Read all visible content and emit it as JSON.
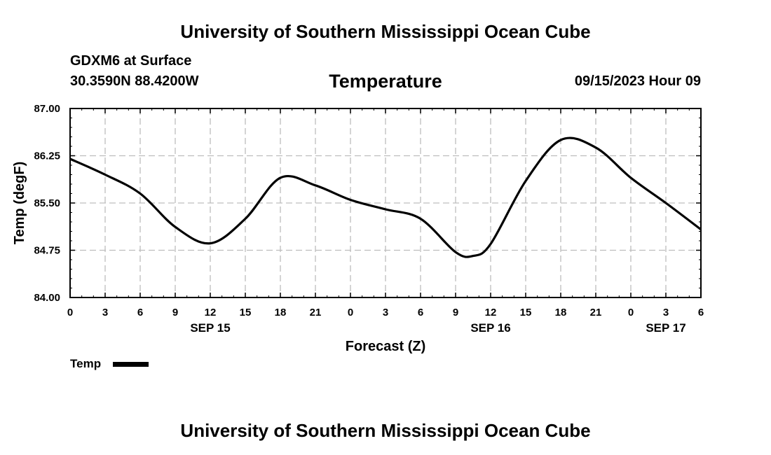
{
  "header": {
    "main_title": "University of Southern Mississippi Ocean Cube",
    "station": "GDXM6 at Surface",
    "coords": "30.3590N  88.4200W",
    "valid_time": "09/15/2023 Hour 09",
    "footer_title": "University of Southern Mississippi Ocean Cube"
  },
  "chart_data": {
    "type": "line",
    "title": "Temperature",
    "xlabel": "Forecast (Z)",
    "ylabel": "Temp (degF)",
    "ylim": [
      84.0,
      87.0
    ],
    "yticks": [
      "84.00",
      "84.75",
      "85.50",
      "86.25",
      "87.00"
    ],
    "xlim": [
      0,
      54
    ],
    "xtick_labels": [
      "0",
      "3",
      "6",
      "9",
      "12",
      "15",
      "18",
      "21",
      "0",
      "3",
      "6",
      "9",
      "12",
      "15",
      "18",
      "21",
      "0",
      "3",
      "6"
    ],
    "date_labels": [
      {
        "label": "SEP 15",
        "hour": 12
      },
      {
        "label": "SEP 16",
        "hour": 36
      },
      {
        "label": "SEP 17",
        "hour": 51
      }
    ],
    "grid": true,
    "legend": "bottom-left",
    "series": [
      {
        "name": "Temp",
        "color": "#000000",
        "x": [
          0,
          3,
          6,
          9,
          12,
          15,
          18,
          21,
          24,
          27,
          30,
          33,
          34.5,
          36,
          39,
          42,
          45,
          48,
          51,
          54
        ],
        "values": [
          86.2,
          85.95,
          85.65,
          85.12,
          84.86,
          85.25,
          85.9,
          85.78,
          85.55,
          85.4,
          85.25,
          84.72,
          84.66,
          84.85,
          85.85,
          86.5,
          86.38,
          85.9,
          85.5,
          85.08
        ]
      }
    ]
  }
}
